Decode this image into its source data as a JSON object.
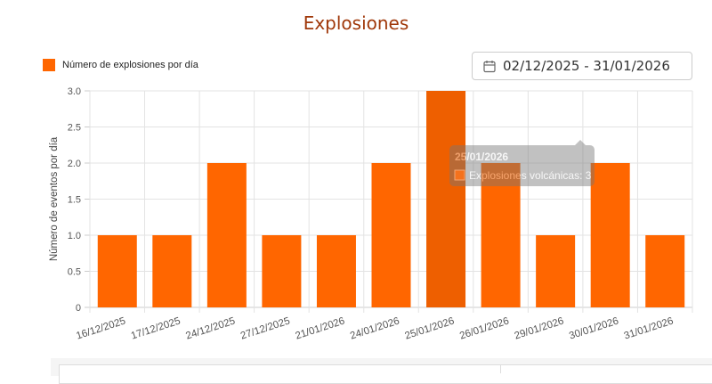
{
  "title": "Explosiones",
  "date_range": {
    "value": "02/12/2025 - 31/01/2026",
    "icon": "calendar-icon"
  },
  "tooltip": {
    "title": "25/01/2026",
    "label": "Explosiones volcánicas: 3"
  },
  "chart_data": {
    "type": "bar",
    "categories": [
      "16/12/2025",
      "17/12/2025",
      "24/12/2025",
      "27/12/2025",
      "21/01/2026",
      "24/01/2026",
      "25/01/2026",
      "26/01/2026",
      "29/01/2026",
      "30/01/2026",
      "31/01/2026"
    ],
    "series": [
      {
        "name": "Número de explosiones por día",
        "values": [
          1,
          1,
          2,
          1,
          1,
          2,
          3,
          2,
          1,
          2,
          1
        ],
        "color": "#ff6600"
      }
    ],
    "ylabel": "Número de eventos por día",
    "xlabel": "",
    "ylim": [
      0,
      3
    ],
    "yticks": [
      "0",
      "0.5",
      "1.0",
      "1.5",
      "2.0",
      "2.5",
      "3.0"
    ],
    "grid": true,
    "legend": "top-left"
  }
}
